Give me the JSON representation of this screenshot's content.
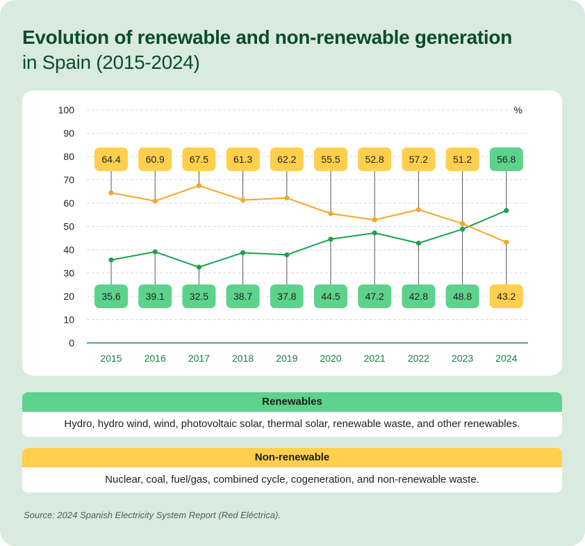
{
  "title_line1": "Evolution of renewable and non-renewable generation",
  "title_line2": "in Spain (2015-2024)",
  "chart_data": {
    "type": "line",
    "x": [
      "2015",
      "2016",
      "2017",
      "2018",
      "2019",
      "2020",
      "2021",
      "2022",
      "2023",
      "2024"
    ],
    "series": [
      {
        "name": "Renewables",
        "values": [
          35.6,
          39.1,
          32.5,
          38.7,
          37.8,
          44.5,
          47.2,
          42.8,
          48.8,
          56.8
        ],
        "color": "#1aa34a",
        "label_fill": "#5dd28c"
      },
      {
        "name": "Non-renewable",
        "values": [
          64.4,
          60.9,
          67.5,
          61.3,
          62.2,
          55.5,
          52.8,
          57.2,
          51.2,
          43.2
        ],
        "color": "#f5a623",
        "label_fill": "#ffcf4d"
      }
    ],
    "yticks": [
      0,
      10,
      20,
      30,
      40,
      50,
      60,
      70,
      80,
      90,
      100
    ],
    "ylim": [
      0,
      100
    ],
    "yunit": "%",
    "grid": true,
    "axis_color": "#1d8b4d",
    "grid_color": "#d9d9d9"
  },
  "legend": {
    "renewables_title": "Renewables",
    "renewables_desc": "Hydro, hydro wind, wind, photovoltaic solar, thermal solar, renewable waste, and other renewables.",
    "nonrenewable_title": "Non-renewable",
    "nonrenewable_desc": "Nuclear, coal, fuel/gas, combined cycle, cogeneration, and non-renewable waste."
  },
  "source": "Source: 2024 Spanish Electricity System Report (Red Eléctrica)."
}
